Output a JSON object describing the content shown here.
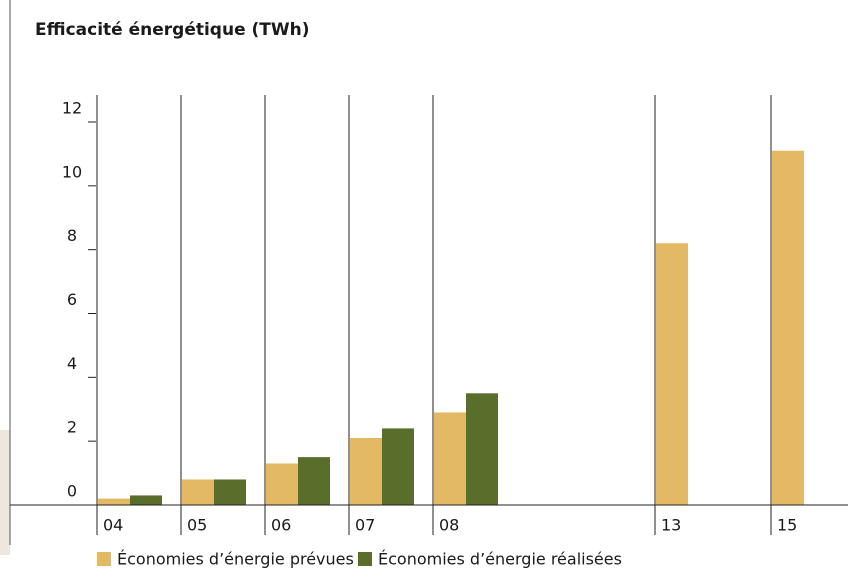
{
  "chart_data": {
    "type": "bar",
    "title": "Efficacité énergétique (TWh)",
    "categories": [
      "04",
      "05",
      "06",
      "07",
      "08",
      "13",
      "15"
    ],
    "series": [
      {
        "name": "Économies d’énergie prévues",
        "color": "#e3b964",
        "values": [
          0.2,
          0.8,
          1.3,
          2.1,
          2.9,
          8.2,
          11.1
        ]
      },
      {
        "name": "Économies d’énergie réalisées",
        "color": "#5a6e2c",
        "values": [
          0.3,
          0.8,
          1.5,
          2.4,
          3.5,
          null,
          null
        ]
      }
    ],
    "ylim": [
      0,
      12
    ],
    "yticks": [
      0,
      2,
      4,
      6,
      8,
      10,
      12
    ]
  }
}
